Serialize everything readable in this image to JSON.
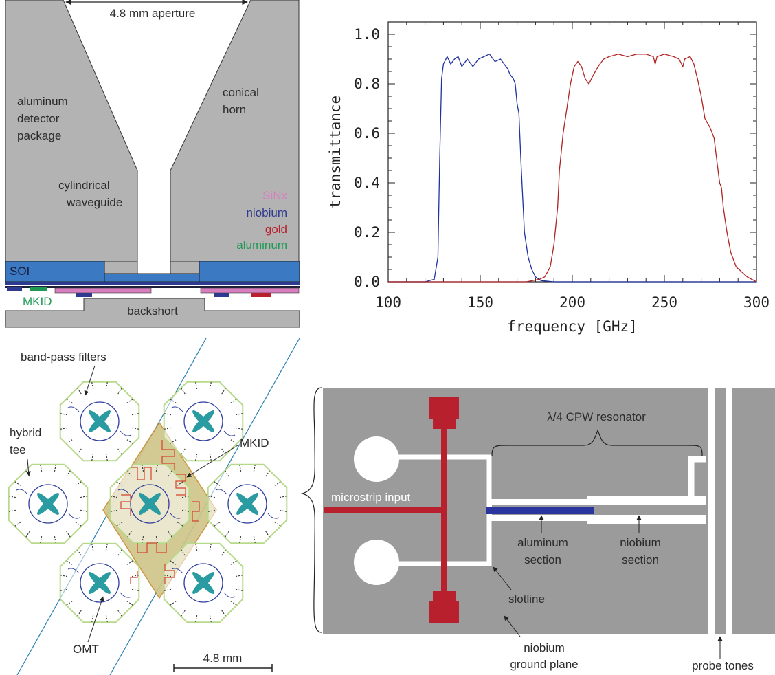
{
  "cross_section": {
    "aperture": "4.8 mm aperture",
    "package": [
      "aluminum",
      "detector",
      "package"
    ],
    "horn": [
      "conical",
      "horn"
    ],
    "waveguide": [
      "cylindrical",
      "waveguide"
    ],
    "legend": {
      "sinx": "SiNx",
      "niobium": "niobium",
      "gold": "gold",
      "aluminum": "aluminum"
    },
    "soi": "SOI",
    "mkid": "MKID",
    "backshort": "backshort",
    "colors": {
      "gray": "#b3b3b3",
      "soi": "#3b79c2",
      "sinx": "#d77fbe",
      "niobium": "#2e3a8f",
      "gold": "#b8202d",
      "aluminum": "#1f9a55"
    }
  },
  "chart_data": {
    "type": "line",
    "xlabel": "frequency [GHz]",
    "ylabel": "transmittance",
    "xlim": [
      100,
      300
    ],
    "ylim": [
      0,
      1.05
    ],
    "xticks": [
      "100",
      "150",
      "200",
      "250",
      "300"
    ],
    "yticks": [
      "0.0",
      "0.2",
      "0.4",
      "0.6",
      "0.8",
      "1.0"
    ],
    "series": [
      {
        "color": "#2032a0",
        "points": [
          [
            100,
            0
          ],
          [
            120,
            0
          ],
          [
            125,
            0.01
          ],
          [
            127,
            0.1
          ],
          [
            128,
            0.5
          ],
          [
            129,
            0.82
          ],
          [
            130,
            0.88
          ],
          [
            132,
            0.91
          ],
          [
            134,
            0.88
          ],
          [
            136,
            0.9
          ],
          [
            138,
            0.91
          ],
          [
            140,
            0.87
          ],
          [
            143,
            0.9
          ],
          [
            146,
            0.87
          ],
          [
            149,
            0.9
          ],
          [
            152,
            0.91
          ],
          [
            155,
            0.92
          ],
          [
            158,
            0.89
          ],
          [
            161,
            0.9
          ],
          [
            163,
            0.88
          ],
          [
            165,
            0.86
          ],
          [
            166,
            0.84
          ],
          [
            168,
            0.82
          ],
          [
            169,
            0.8
          ],
          [
            170,
            0.72
          ],
          [
            171,
            0.68
          ],
          [
            172,
            0.5
          ],
          [
            173,
            0.35
          ],
          [
            174,
            0.2
          ],
          [
            176,
            0.1
          ],
          [
            178,
            0.05
          ],
          [
            180,
            0.02
          ],
          [
            183,
            0.005
          ],
          [
            190,
            0
          ],
          [
            300,
            0
          ]
        ]
      },
      {
        "color": "#b22222",
        "points": [
          [
            100,
            0
          ],
          [
            175,
            0
          ],
          [
            182,
            0.01
          ],
          [
            185,
            0.02
          ],
          [
            188,
            0.06
          ],
          [
            190,
            0.15
          ],
          [
            192,
            0.3
          ],
          [
            193,
            0.45
          ],
          [
            195,
            0.6
          ],
          [
            197,
            0.7
          ],
          [
            199,
            0.8
          ],
          [
            201,
            0.87
          ],
          [
            203,
            0.89
          ],
          [
            205,
            0.87
          ],
          [
            207,
            0.82
          ],
          [
            209,
            0.8
          ],
          [
            211,
            0.83
          ],
          [
            214,
            0.87
          ],
          [
            217,
            0.9
          ],
          [
            220,
            0.91
          ],
          [
            225,
            0.92
          ],
          [
            230,
            0.91
          ],
          [
            235,
            0.92
          ],
          [
            240,
            0.92
          ],
          [
            244,
            0.91
          ],
          [
            245,
            0.88
          ],
          [
            246,
            0.91
          ],
          [
            250,
            0.92
          ],
          [
            255,
            0.91
          ],
          [
            258,
            0.9
          ],
          [
            260,
            0.87
          ],
          [
            261,
            0.9
          ],
          [
            264,
            0.91
          ],
          [
            266,
            0.88
          ],
          [
            268,
            0.82
          ],
          [
            270,
            0.75
          ],
          [
            272,
            0.66
          ],
          [
            275,
            0.62
          ],
          [
            277,
            0.58
          ],
          [
            278,
            0.52
          ],
          [
            279,
            0.46
          ],
          [
            280,
            0.4
          ],
          [
            281,
            0.38
          ],
          [
            282,
            0.3
          ],
          [
            283,
            0.25
          ],
          [
            284,
            0.2
          ],
          [
            286,
            0.12
          ],
          [
            288,
            0.08
          ],
          [
            289,
            0.06
          ],
          [
            292,
            0.04
          ],
          [
            295,
            0.02
          ],
          [
            300,
            0
          ]
        ]
      }
    ]
  },
  "array": {
    "bandpass": "band-pass filters",
    "hybrid": [
      "hybrid",
      "tee"
    ],
    "mkid": "MKID",
    "omt": "OMT",
    "scale": "4.8 mm"
  },
  "resonator": {
    "cpw": "λ/4 CPW resonator",
    "microstrip": "microstrip input",
    "aluminum_section": [
      "aluminum",
      "section"
    ],
    "niobium_section": [
      "niobium",
      "section"
    ],
    "slotline": "slotline",
    "ground": [
      "niobium",
      "ground plane"
    ],
    "probe": "probe tones",
    "colors": {
      "ground": "#9b9b9b",
      "microstrip": "#b8202d",
      "aluminum": "#2a35a0"
    }
  }
}
